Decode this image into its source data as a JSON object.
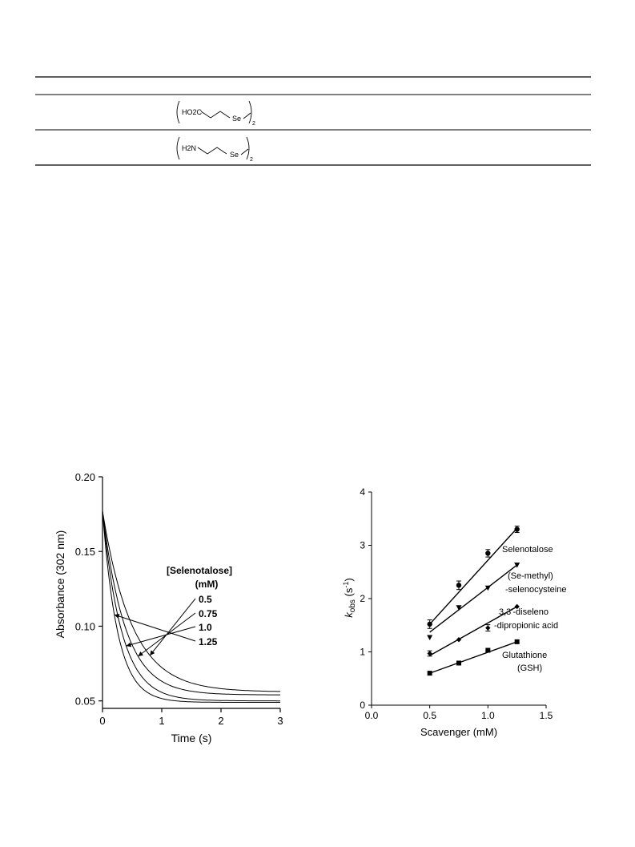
{
  "table": {
    "rows": [
      {
        "structure_group": "HO2C",
        "structure_atom": "Se",
        "subscript": "2"
      },
      {
        "structure_group": "H2N",
        "structure_atom": "Se",
        "subscript": "2"
      }
    ]
  },
  "chart_data": [
    {
      "type": "line",
      "title": "",
      "xlabel": "Time (s)",
      "ylabel": "Absorbance (302 nm)",
      "xlim": [
        0,
        3
      ],
      "ylim": [
        0.045,
        0.2
      ],
      "x_ticks": [
        "0",
        "1",
        "2",
        "3"
      ],
      "y_ticks": [
        "0.05",
        "0.10",
        "0.15",
        "0.20"
      ],
      "legend_title": "[Selenotalose]",
      "legend_unit": "(mM)",
      "series": [
        {
          "name": "0.5",
          "a0": 0.177,
          "plateau": 0.056,
          "k": 2.0
        },
        {
          "name": "0.75",
          "a0": 0.177,
          "plateau": 0.054,
          "k": 2.6
        },
        {
          "name": "1.0",
          "a0": 0.177,
          "plateau": 0.05,
          "k": 3.1
        },
        {
          "name": "1.25",
          "a0": 0.177,
          "plateau": 0.049,
          "k": 3.9
        }
      ],
      "grid": false
    },
    {
      "type": "scatter",
      "title": "",
      "xlabel": "Scavenger (mM)",
      "ylabel_main": "k",
      "ylabel_sub": "obs",
      "ylabel_unit_open": " (s",
      "ylabel_unit_sup": "-1",
      "ylabel_unit_close": ")",
      "xlim": [
        0,
        1.5
      ],
      "ylim": [
        0,
        4
      ],
      "x_ticks": [
        "0.0",
        "0.5",
        "1.0",
        "1.5"
      ],
      "y_ticks": [
        "0",
        "1",
        "2",
        "3",
        "4"
      ],
      "x": [
        0.5,
        0.75,
        1.0,
        1.25
      ],
      "series": [
        {
          "name": "Selenotalose",
          "values": [
            1.52,
            2.25,
            2.85,
            3.3
          ],
          "errors": [
            0.08,
            0.08,
            0.07,
            0.06
          ],
          "fit": [
            1.52,
            3.32
          ],
          "marker": "circle",
          "labels": [
            "Selenotalose"
          ]
        },
        {
          "name": "(Se-methyl) -selenocysteine",
          "values": [
            1.27,
            1.83,
            2.2,
            2.63
          ],
          "errors": [
            0,
            0,
            0,
            0
          ],
          "fit": [
            1.37,
            2.63
          ],
          "marker": "triangle-down",
          "labels": [
            "(Se-methyl)",
            "-selenocysteine"
          ]
        },
        {
          "name": "3,3'-diseleno -dipropionic acid",
          "values": [
            0.97,
            1.23,
            1.45,
            1.85
          ],
          "errors": [
            0.05,
            0,
            0.06,
            0
          ],
          "fit": [
            0.93,
            1.85
          ],
          "marker": "diamond",
          "labels": [
            "3,3'-diseleno",
            "-dipropionic acid"
          ]
        },
        {
          "name": "Glutathione (GSH)",
          "values": [
            0.6,
            0.79,
            1.03,
            1.19
          ],
          "errors": [
            0,
            0,
            0,
            0
          ],
          "fit": [
            0.6,
            1.19
          ],
          "marker": "square",
          "labels": [
            "Glutathione",
            "(GSH)"
          ]
        }
      ],
      "grid": false
    }
  ]
}
